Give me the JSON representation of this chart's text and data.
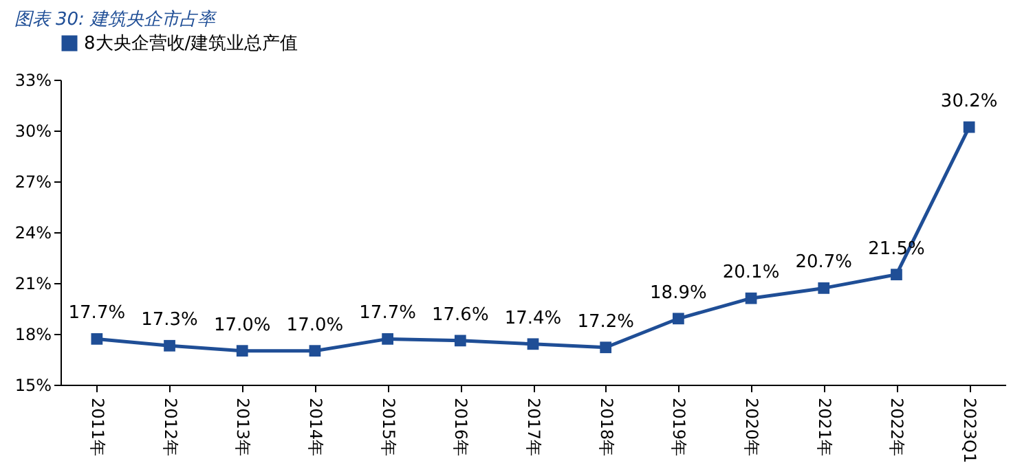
{
  "chart_data": {
    "type": "line",
    "title": "图表 30: 建筑央企市占率",
    "categories": [
      "2011年",
      "2012年",
      "2013年",
      "2014年",
      "2015年",
      "2016年",
      "2017年",
      "2018年",
      "2019年",
      "2020年",
      "2021年",
      "2022年",
      "2023Q1"
    ],
    "series": [
      {
        "name": "8大央企营收/建筑业总产值",
        "color": "#1f4e96",
        "values": [
          17.7,
          17.3,
          17.0,
          17.0,
          17.7,
          17.6,
          17.4,
          17.2,
          18.9,
          20.1,
          20.7,
          21.5,
          30.2
        ],
        "value_labels": [
          "17.7%",
          "17.3%",
          "17.0%",
          "17.0%",
          "17.7%",
          "17.6%",
          "17.4%",
          "17.2%",
          "18.9%",
          "20.1%",
          "20.7%",
          "21.5%",
          "30.2%"
        ]
      }
    ],
    "ylim": [
      15,
      33
    ],
    "yticks": [
      {
        "value": 15,
        "label": "15%"
      },
      {
        "value": 18,
        "label": "18%"
      },
      {
        "value": 21,
        "label": "21%"
      },
      {
        "value": 24,
        "label": "24%"
      },
      {
        "value": 27,
        "label": "27%"
      },
      {
        "value": 30,
        "label": "30%"
      },
      {
        "value": 33,
        "label": "33%"
      }
    ],
    "grid": false,
    "legend": "top",
    "marker": "square",
    "line_style": "solid"
  }
}
